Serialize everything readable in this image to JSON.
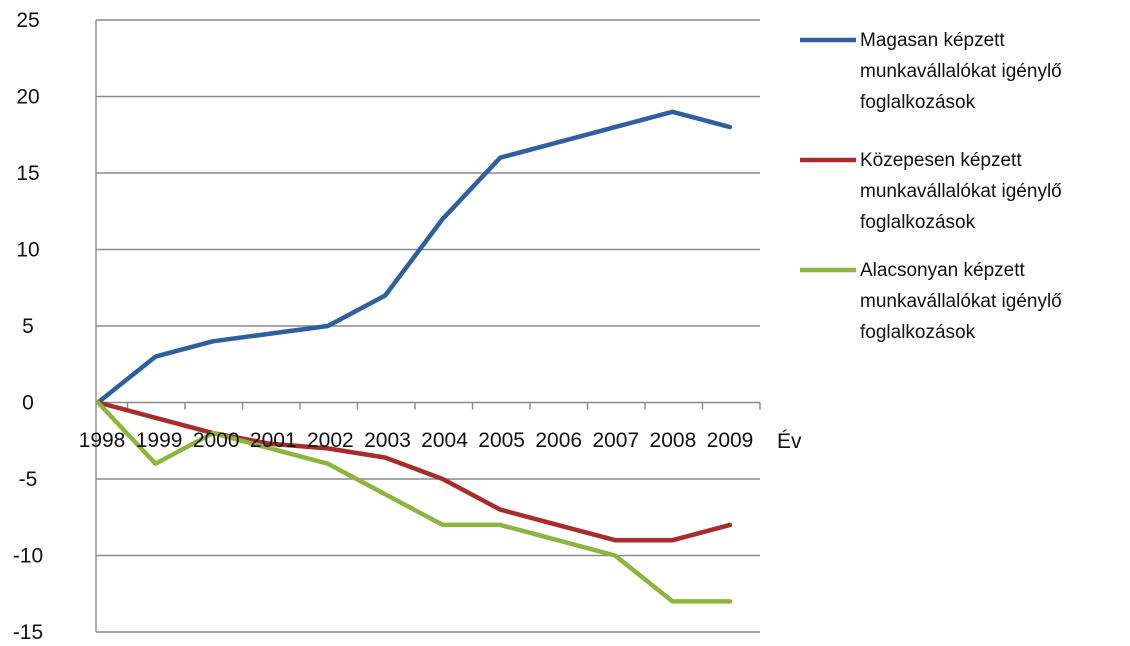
{
  "chart_data": {
    "type": "line",
    "title": "",
    "xlabel": "Év",
    "ylabel": "",
    "ylim": [
      -15,
      25
    ],
    "yticks": [
      25,
      20,
      15,
      10,
      5,
      0,
      -5,
      -10,
      -15
    ],
    "grid": true,
    "legend_position": "right",
    "x": [
      "1998",
      "1999",
      "2000",
      "2001",
      "2002",
      "2003",
      "2004",
      "2005",
      "2006",
      "2007",
      "2008",
      "2009"
    ],
    "series": [
      {
        "name_lines": [
          "Magasan képzett",
          "munkavállalókat igénylő",
          "foglalkozások"
        ],
        "color": "#2e5f9e",
        "values": [
          0,
          3,
          4,
          4.5,
          5,
          7,
          12,
          16,
          17,
          18,
          19,
          18
        ]
      },
      {
        "name_lines": [
          "Közepesen képzett",
          "munkavállalókat igénylő",
          "foglalkozások"
        ],
        "color": "#a82c2c",
        "values": [
          0,
          -1,
          -2,
          -2.7,
          -3,
          -3.6,
          -5,
          -7,
          -8,
          -9,
          -9,
          -8
        ]
      },
      {
        "name_lines": [
          "Alacsonyan képzett",
          "munkavállalókat igénylő",
          "foglalkozások"
        ],
        "color": "#8cb53e",
        "values": [
          0,
          -4,
          -2,
          -3,
          -4,
          -6,
          -8,
          -8,
          -9,
          -10,
          -13,
          -13
        ]
      }
    ]
  }
}
